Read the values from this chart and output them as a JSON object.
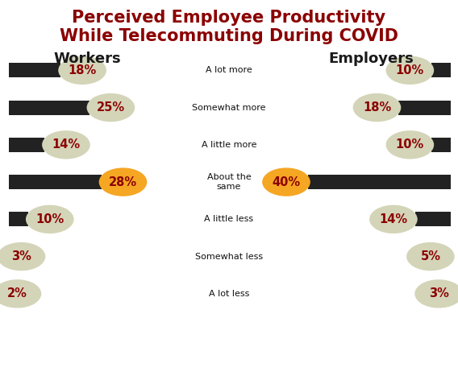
{
  "title_line1": "Perceived Employee Productivity",
  "title_line2": "While Telecommuting During COVID",
  "title_color": "#8B0000",
  "title_fontsize": 15,
  "workers_label": "Workers",
  "employers_label": "Employers",
  "header_color": "#1a1a1a",
  "header_fontsize": 13,
  "categories": [
    "A lot more",
    "Somewhat more",
    "A little more",
    "About the\nsame",
    "A little less",
    "Somewhat less",
    "A lot less"
  ],
  "workers_values": [
    18,
    25,
    14,
    28,
    10,
    3,
    2
  ],
  "employers_values": [
    10,
    18,
    10,
    40,
    14,
    5,
    3
  ],
  "bar_color": "#222222",
  "circle_color_normal": "#d4d4b8",
  "circle_color_highlight": "#f5a623",
  "text_color": "#8B0000",
  "background_color": "#ffffff",
  "highlight_index": 3,
  "max_scale_value": 40
}
